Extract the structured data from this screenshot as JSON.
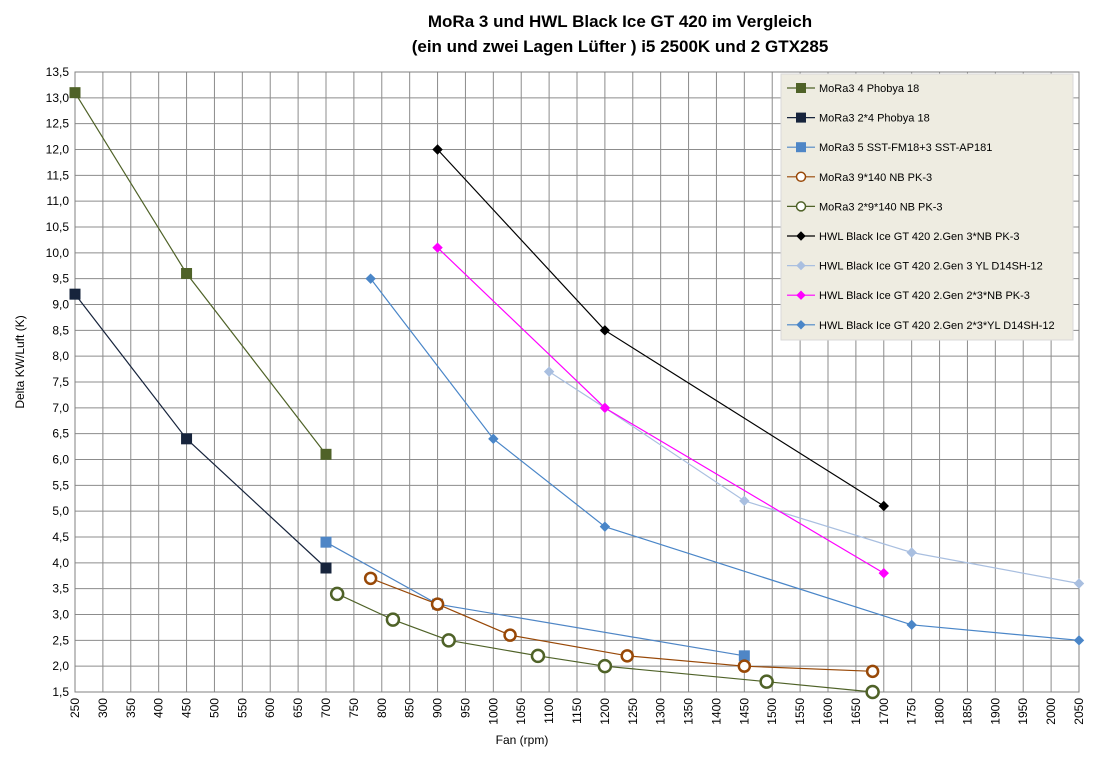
{
  "chart_data": {
    "type": "scatter",
    "title": "MoRa 3 und HWL Black Ice GT 420 im Vergleich",
    "subtitle": "(ein und zwei Lagen Lüfter ) i5 2500K und 2 GTX285",
    "xlabel": "Fan (rpm)",
    "ylabel": "Delta KW/Luft (K)",
    "xlim": [
      250,
      2050
    ],
    "ylim": [
      1.5,
      13.5
    ],
    "xticks": [
      "250",
      "300",
      "350",
      "400",
      "450",
      "500",
      "550",
      "600",
      "650",
      "700",
      "750",
      "800",
      "850",
      "900",
      "950",
      "1000",
      "1050",
      "1100",
      "1150",
      "1200",
      "1250",
      "1300",
      "1350",
      "1400",
      "1450",
      "1500",
      "1550",
      "1600",
      "1650",
      "1700",
      "1750",
      "1800",
      "1850",
      "1900",
      "1950",
      "2000",
      "2050"
    ],
    "yticks": [
      "1,5",
      "2,0",
      "2,5",
      "3,0",
      "3,5",
      "4,0",
      "4,5",
      "5,0",
      "5,5",
      "6,0",
      "6,5",
      "7,0",
      "7,5",
      "8,0",
      "8,5",
      "9,0",
      "9,5",
      "10,0",
      "10,5",
      "11,0",
      "11,5",
      "12,0",
      "12,5",
      "13,0",
      "13,5"
    ],
    "grid": true,
    "legend_position": "top-right",
    "series": [
      {
        "name": "MoRa3 4 Phobya 18",
        "color": "#4f6228",
        "marker": "square",
        "x": [
          250,
          450,
          700
        ],
        "y": [
          13.1,
          9.6,
          6.1
        ]
      },
      {
        "name": "MoRa3 2*4 Phobya 18",
        "color": "#17243c",
        "marker": "square",
        "x": [
          250,
          450,
          700
        ],
        "y": [
          9.2,
          6.4,
          3.9
        ]
      },
      {
        "name": "MoRa3 5 SST-FM18+3 SST-AP181",
        "color": "#4f86c6",
        "marker": "square",
        "x": [
          700,
          900,
          1450
        ],
        "y": [
          4.4,
          3.2,
          2.2
        ]
      },
      {
        "name": "MoRa3 9*140 NB PK-3",
        "color": "#984807",
        "marker": "circle-open",
        "x": [
          780,
          900,
          1030,
          1240,
          1450,
          1680
        ],
        "y": [
          3.7,
          3.2,
          2.6,
          2.2,
          2.0,
          1.9
        ]
      },
      {
        "name": "MoRa3 2*9*140 NB PK-3",
        "color": "#4f6228",
        "marker": "circle-open",
        "x": [
          720,
          820,
          920,
          1080,
          1200,
          1490,
          1680
        ],
        "y": [
          3.4,
          2.9,
          2.5,
          2.2,
          2.0,
          1.7,
          1.5
        ]
      },
      {
        "name": "HWL Black Ice GT 420 2.Gen 3*NB PK-3",
        "color": "#000000",
        "marker": "diamond",
        "x": [
          900,
          1200,
          1700
        ],
        "y": [
          12.0,
          8.5,
          5.1
        ]
      },
      {
        "name": "HWL Black Ice GT 420 2.Gen 3 YL D14SH-12",
        "color": "#a9bfe0",
        "marker": "diamond",
        "x": [
          1100,
          1200,
          1450,
          1750,
          2050
        ],
        "y": [
          7.7,
          7.0,
          5.2,
          4.2,
          3.6
        ]
      },
      {
        "name": "HWL Black Ice GT 420 2.Gen 2*3*NB PK-3",
        "color": "#ff00ff",
        "marker": "diamond",
        "x": [
          900,
          1200,
          1700
        ],
        "y": [
          10.1,
          7.0,
          3.8
        ]
      },
      {
        "name": "HWL Black Ice GT 420 2.Gen 2*3*YL D14SH-12",
        "color": "#4a86c8",
        "marker": "diamond",
        "x": [
          780,
          1000,
          1200,
          1750,
          2050
        ],
        "y": [
          9.5,
          6.4,
          4.7,
          2.8,
          2.5
        ]
      }
    ]
  }
}
